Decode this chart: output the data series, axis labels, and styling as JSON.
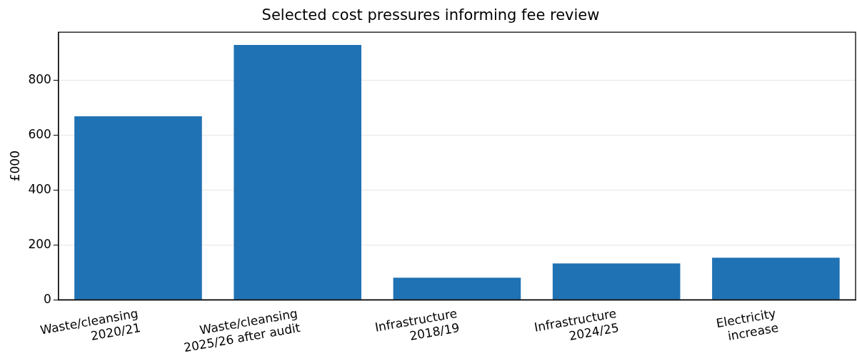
{
  "chart_data": {
    "type": "bar",
    "title": "Selected cost pressures informing fee review",
    "ylabel": "£000",
    "categories": [
      "Waste/cleansing\n2020/21",
      "Waste/cleansing\n2025/26 after audit",
      "Infrastructure\n2018/19",
      "Infrastructure\n2024/25",
      "Electricity\nincrease"
    ],
    "values": [
      668,
      928,
      80,
      132,
      153
    ],
    "color": "#1f72b4",
    "ylim": [
      0,
      974
    ],
    "yticks": [
      0,
      200,
      400,
      600,
      800
    ],
    "grid": "y",
    "legend": false
  }
}
